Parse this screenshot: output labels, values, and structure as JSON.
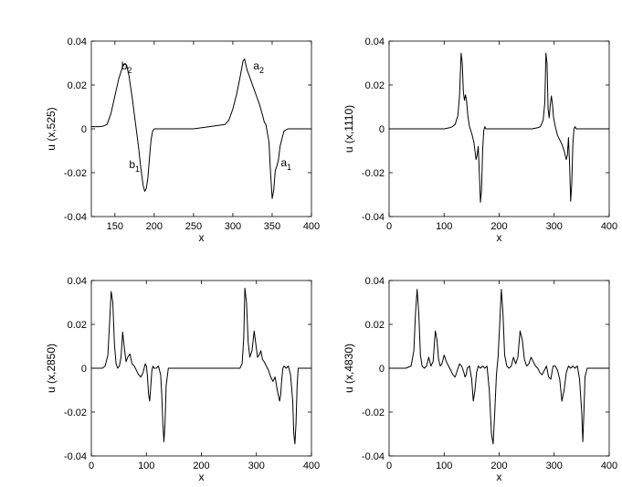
{
  "chart_data": [
    {
      "type": "line",
      "xlabel": "x",
      "ylabel": "u (x,525)",
      "xlim": [
        120,
        400
      ],
      "ylim": [
        -0.04,
        0.04
      ],
      "xticks": [
        150,
        200,
        250,
        300,
        350,
        400
      ],
      "xtick_labels": [
        "150",
        "200",
        "250",
        "300",
        "350",
        "400"
      ],
      "yticks": [
        -0.04,
        -0.02,
        0,
        0.02,
        0.04
      ],
      "ytick_labels": [
        "-0.04",
        "-0.02",
        "0",
        "0.02",
        "0.04"
      ],
      "grid": false,
      "annotations": [
        {
          "base": "b",
          "sub": "2",
          "x": 158,
          "y": 0.027
        },
        {
          "base": "b",
          "sub": "1",
          "x": 168,
          "y": -0.018
        },
        {
          "base": "a",
          "sub": "2",
          "x": 326,
          "y": 0.027
        },
        {
          "base": "a",
          "sub": "1",
          "x": 361,
          "y": -0.017
        }
      ],
      "series": [
        {
          "x": [
            120,
            130,
            135,
            140,
            145,
            150,
            155,
            160,
            163,
            165,
            168,
            172,
            176,
            180,
            183,
            186,
            188,
            190,
            192,
            194,
            196,
            198,
            200,
            205,
            215,
            230,
            250,
            270,
            290,
            295,
            300,
            305,
            310,
            313,
            315,
            318,
            322,
            326,
            330,
            334,
            338,
            340,
            342,
            344,
            346,
            348,
            350,
            352,
            354,
            356,
            358,
            360,
            365,
            370,
            380,
            400
          ],
          "y": [
            0.001,
            0.001,
            0.0012,
            0.002,
            0.007,
            0.015,
            0.023,
            0.0285,
            0.0298,
            0.029,
            0.024,
            0.014,
            0.003,
            -0.008,
            -0.018,
            -0.026,
            -0.0285,
            -0.027,
            -0.022,
            -0.013,
            -0.005,
            -0.001,
            0,
            0,
            0,
            0,
            0,
            0.001,
            0.002,
            0.004,
            0.009,
            0.016,
            0.025,
            0.031,
            0.0318,
            0.027,
            0.023,
            0.019,
            0.015,
            0.011,
            0.006,
            0.003,
            0.002,
            -0.002,
            -0.006,
            -0.02,
            -0.0318,
            -0.028,
            -0.019,
            -0.017,
            -0.014,
            -0.008,
            -0.001,
            0,
            0,
            0
          ]
        }
      ]
    },
    {
      "type": "line",
      "xlabel": "x",
      "ylabel": "u (x,1110)",
      "xlim": [
        0,
        400
      ],
      "ylim": [
        -0.04,
        0.04
      ],
      "xticks": [
        0,
        100,
        200,
        300,
        400
      ],
      "xtick_labels": [
        "0",
        "100",
        "200",
        "300",
        "400"
      ],
      "yticks": [
        -0.04,
        -0.02,
        0,
        0.02,
        0.04
      ],
      "ytick_labels": [
        "-0.04",
        "-0.02",
        "0",
        "0.02",
        "0.04"
      ],
      "grid": false,
      "series": [
        {
          "x": [
            0,
            100,
            110,
            115,
            120,
            125,
            128,
            131,
            133,
            135,
            137,
            139,
            141,
            143,
            146,
            150,
            154,
            156,
            158,
            160,
            162,
            164,
            166,
            168,
            170,
            172,
            174,
            176,
            180,
            200,
            230,
            260,
            270,
            275,
            280,
            283,
            285,
            287,
            289,
            291,
            293,
            295,
            297,
            299,
            302,
            306,
            310,
            314,
            318,
            322,
            324,
            326,
            328,
            330,
            332,
            334,
            336,
            338,
            340,
            342,
            345,
            350,
            400
          ],
          "y": [
            0,
            0,
            0.0005,
            0.001,
            0.002,
            0.006,
            0.015,
            0.0345,
            0.03,
            0.017,
            0.013,
            0.0155,
            0.012,
            0.006,
            0.001,
            -0.002,
            -0.006,
            -0.01,
            -0.014,
            -0.012,
            -0.008,
            -0.02,
            -0.0335,
            -0.028,
            -0.01,
            -0.001,
            0.001,
            0,
            0,
            0,
            0,
            0,
            0.0005,
            0.001,
            0.004,
            0.012,
            0.0345,
            0.03,
            0.009,
            0.005,
            0.011,
            0.015,
            0.011,
            0.005,
            0.001,
            -0.003,
            -0.005,
            -0.007,
            -0.01,
            -0.014,
            -0.012,
            -0.004,
            -0.016,
            -0.033,
            -0.025,
            -0.007,
            0,
            0.001,
            0,
            0,
            0,
            0,
            0
          ]
        }
      ]
    },
    {
      "type": "line",
      "xlabel": "x",
      "ylabel": "u (x,2850)",
      "xlim": [
        0,
        400
      ],
      "ylim": [
        -0.04,
        0.04
      ],
      "xticks": [
        0,
        100,
        200,
        300,
        400
      ],
      "xtick_labels": [
        "0",
        "100",
        "200",
        "300",
        "400"
      ],
      "yticks": [
        -0.04,
        -0.02,
        0,
        0.02,
        0.04
      ],
      "ytick_labels": [
        "-0.04",
        "-0.02",
        "0",
        "0.02",
        "0.04"
      ],
      "grid": false,
      "series": [
        {
          "x": [
            0,
            20,
            25,
            30,
            33,
            36,
            39,
            42,
            45,
            48,
            51,
            54,
            57,
            60,
            63,
            66,
            70,
            74,
            78,
            82,
            86,
            90,
            94,
            98,
            100,
            102,
            104,
            106,
            108,
            110,
            112,
            114,
            118,
            122,
            126,
            128,
            130,
            132,
            134,
            136,
            140,
            150,
            200,
            260,
            270,
            274,
            277,
            279,
            282,
            285,
            288,
            292,
            296,
            299,
            302,
            305,
            308,
            311,
            314,
            318,
            322,
            326,
            330,
            334,
            338,
            342,
            344,
            346,
            348,
            350,
            354,
            358,
            362,
            366,
            368,
            370,
            372,
            374,
            376,
            380,
            400
          ],
          "y": [
            0,
            0,
            0.001,
            0.006,
            0.02,
            0.035,
            0.03,
            0.011,
            0.002,
            0,
            0.001,
            0.005,
            0.0165,
            0.009,
            0.003,
            0.005,
            0.0065,
            0.002,
            0.001,
            -0.001,
            -0.003,
            -0.004,
            -0.002,
            0.002,
            0.001,
            -0.004,
            -0.012,
            -0.015,
            -0.008,
            -0.001,
            0.001,
            0,
            0,
            0.001,
            -0.003,
            -0.012,
            -0.025,
            -0.0335,
            -0.025,
            -0.008,
            0,
            0,
            0,
            0,
            0,
            0.002,
            0.014,
            0.0365,
            0.03,
            0.012,
            0.005,
            0.008,
            0.017,
            0.011,
            0.005,
            0.006,
            0.008,
            0.004,
            0.003,
            0.001,
            -0.001,
            -0.004,
            -0.006,
            -0.004,
            -0.01,
            -0.015,
            -0.012,
            -0.005,
            0,
            0.001,
            0,
            0.001,
            -0.003,
            -0.015,
            -0.03,
            -0.0345,
            -0.025,
            -0.008,
            0,
            0,
            0
          ]
        }
      ]
    },
    {
      "type": "line",
      "xlabel": "x",
      "ylabel": "u (x,4830)",
      "xlim": [
        0,
        400
      ],
      "ylim": [
        -0.04,
        0.04
      ],
      "xticks": [
        0,
        100,
        200,
        300,
        400
      ],
      "xtick_labels": [
        "0",
        "100",
        "200",
        "300",
        "400"
      ],
      "yticks": [
        -0.04,
        -0.02,
        0,
        0.02,
        0.04
      ],
      "ytick_labels": [
        "-0.04",
        "-0.02",
        "0",
        "0.02",
        "0.04"
      ],
      "grid": false,
      "series": [
        {
          "x": [
            0,
            30,
            40,
            45,
            48,
            51,
            54,
            57,
            60,
            64,
            68,
            72,
            76,
            80,
            84,
            87,
            90,
            93,
            96,
            100,
            104,
            108,
            112,
            116,
            120,
            124,
            128,
            132,
            136,
            138,
            140,
            142,
            146,
            150,
            153,
            156,
            159,
            162,
            166,
            170,
            174,
            178,
            182,
            186,
            189,
            192,
            195,
            198,
            201,
            204,
            207,
            210,
            214,
            218,
            222,
            226,
            230,
            234,
            238,
            242,
            246,
            250,
            254,
            258,
            262,
            266,
            270,
            274,
            278,
            282,
            286,
            290,
            294,
            298,
            302,
            306,
            310,
            314,
            318,
            322,
            326,
            330,
            334,
            338,
            342,
            346,
            350,
            352,
            354,
            356,
            360,
            370,
            400
          ],
          "y": [
            0,
            0,
            0.001,
            0.008,
            0.025,
            0.036,
            0.025,
            0.006,
            0.001,
            0,
            0.001,
            0.005,
            0.001,
            0.003,
            0.017,
            0.013,
            0.004,
            0.001,
            0.002,
            0.006,
            0.003,
            0.001,
            -0.001,
            -0.003,
            -0.004,
            -0.001,
            0.002,
            0.001,
            -0.002,
            -0.004,
            -0.003,
            0,
            0.001,
            -0.005,
            -0.015,
            -0.01,
            -0.002,
            0.001,
            0,
            0.001,
            0,
            0.001,
            -0.01,
            -0.03,
            -0.0345,
            -0.02,
            -0.003,
            0.005,
            0.02,
            0.036,
            0.025,
            0.006,
            0.001,
            0,
            0.001,
            0.005,
            0.002,
            0.005,
            0.017,
            0.013,
            0.004,
            0.001,
            0.002,
            0.005,
            0.003,
            0.001,
            0,
            -0.002,
            -0.003,
            -0.001,
            0.001,
            -0.004,
            -0.005,
            0.001,
            0.001,
            -0.001,
            -0.005,
            -0.015,
            -0.01,
            -0.002,
            0.001,
            0,
            0.001,
            0,
            0.001,
            -0.005,
            -0.02,
            -0.0335,
            -0.02,
            -0.004,
            0,
            0,
            0
          ]
        }
      ]
    }
  ]
}
